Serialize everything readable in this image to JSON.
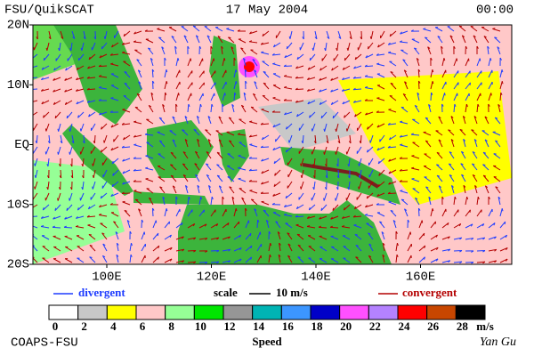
{
  "header": {
    "title": "FSU/QuikSCAT",
    "date": "17 May 2004",
    "time": "00:00"
  },
  "map": {
    "lat_labels": [
      "20N",
      "10N",
      "EQ",
      "10S",
      "20S"
    ],
    "lon_labels": [
      "100E",
      "120E",
      "140E",
      "160E"
    ]
  },
  "legend": {
    "divergent": {
      "label": "divergent",
      "color": "#1e3cff"
    },
    "scale": {
      "label": "scale",
      "value_label": "10 m/s"
    },
    "convergent": {
      "label": "convergent",
      "color": "#b40000"
    }
  },
  "colorbar": {
    "title": "Speed",
    "unit": "m/s",
    "ticks": [
      0,
      2,
      4,
      6,
      8,
      10,
      12,
      14,
      16,
      18,
      20,
      22,
      24,
      26,
      28
    ],
    "colors": [
      "#ffffff",
      "#c8c8c8",
      "#ffff00",
      "#ffc8c8",
      "#96ff96",
      "#00e600",
      "#969696",
      "#00b4b4",
      "#3c96ff",
      "#0000c8",
      "#ff50ff",
      "#b482ff",
      "#ff0000",
      "#c84600",
      "#000000"
    ]
  },
  "footer": {
    "left": "COAPS-FSU",
    "right": "Yan Gu"
  }
}
